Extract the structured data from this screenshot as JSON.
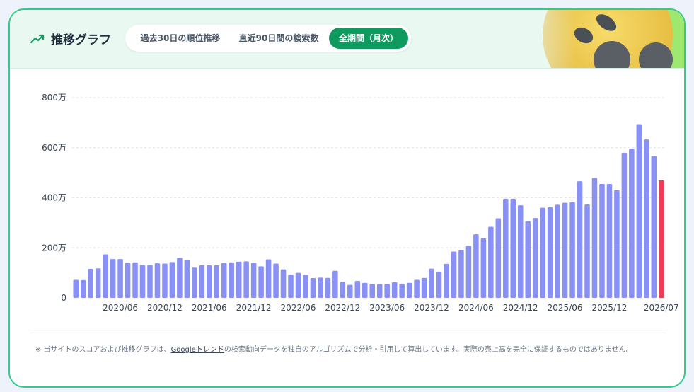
{
  "header": {
    "title": "推移グラフ",
    "icon": "trending-up-icon",
    "tabs": [
      {
        "label": "過去30日の順位推移",
        "active": false
      },
      {
        "label": "直近90日間の検索数",
        "active": false
      },
      {
        "label": "全期間（月次）",
        "active": true
      }
    ]
  },
  "colors": {
    "bar": "#8a91f5",
    "highlight_bar": "#ef3b56",
    "accent": "#0f9a5f",
    "border": "#34c98d"
  },
  "chart_data": {
    "type": "bar",
    "ylim": [
      0,
      8000000
    ],
    "y_ticks": [
      {
        "value": 0,
        "label": "0"
      },
      {
        "value": 2000000,
        "label": "200万"
      },
      {
        "value": 4000000,
        "label": "400万"
      },
      {
        "value": 6000000,
        "label": "600万"
      },
      {
        "value": 8000000,
        "label": "800万"
      }
    ],
    "grid": true,
    "legend": "none",
    "x_tick_labels": [
      "2020/06",
      "2020/12",
      "2021/06",
      "2021/12",
      "2022/06",
      "2022/12",
      "2023/06",
      "2023/12",
      "2024/06",
      "2024/12",
      "2025/06",
      "2025/12",
      "2026/07"
    ],
    "x_tick_indices": [
      6,
      12,
      18,
      24,
      30,
      36,
      42,
      48,
      54,
      60,
      66,
      72,
      79
    ],
    "highlight_last": true,
    "values": [
      720000,
      710000,
      1160000,
      1180000,
      1740000,
      1550000,
      1550000,
      1410000,
      1420000,
      1310000,
      1310000,
      1380000,
      1370000,
      1430000,
      1600000,
      1510000,
      1210000,
      1300000,
      1300000,
      1300000,
      1400000,
      1420000,
      1450000,
      1460000,
      1400000,
      1260000,
      1540000,
      1370000,
      1140000,
      930000,
      1000000,
      920000,
      790000,
      810000,
      800000,
      1080000,
      640000,
      520000,
      680000,
      600000,
      560000,
      550000,
      560000,
      630000,
      570000,
      600000,
      720000,
      800000,
      1170000,
      1050000,
      1360000,
      1850000,
      1900000,
      2080000,
      2540000,
      2380000,
      2840000,
      3180000,
      3960000,
      3960000,
      3700000,
      3060000,
      3190000,
      3600000,
      3620000,
      3720000,
      3800000,
      3820000,
      4660000,
      3730000,
      4790000,
      4550000,
      4550000,
      4300000,
      5800000,
      5960000,
      6940000,
      6330000,
      5660000,
      4700000
    ]
  },
  "footer": {
    "note_prefix": "※ 当サイトのスコアおよび推移グラフは、",
    "link_text": "Googleトレンド",
    "note_suffix": "の検索動向データを独自のアルゴリズムで分析・引用して算出しています。実際の売上高を完全に保証するものではありません。"
  }
}
